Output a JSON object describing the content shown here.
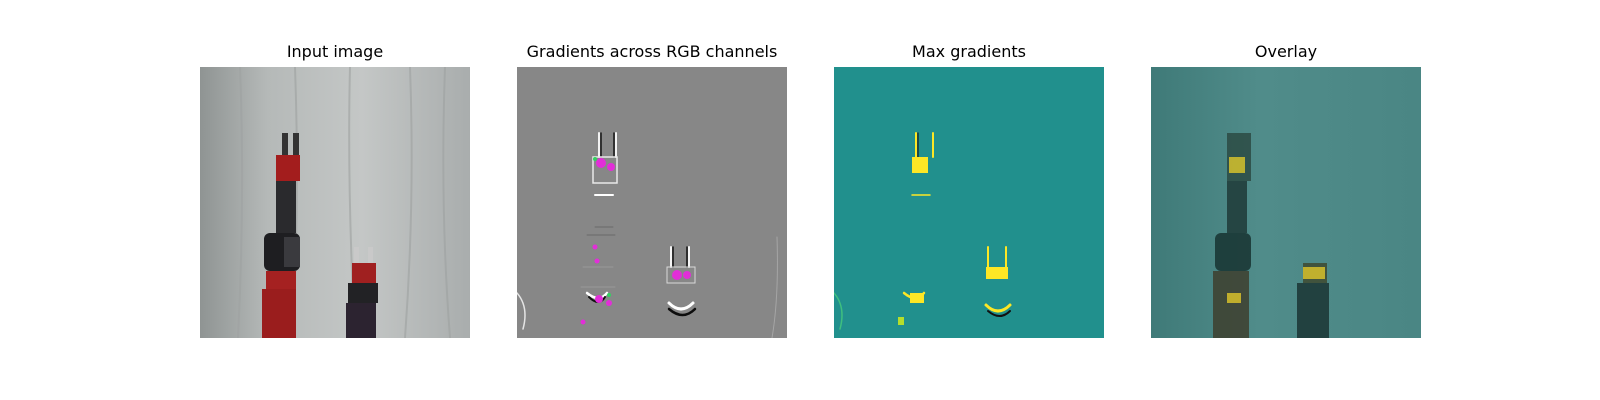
{
  "figure": {
    "panels": [
      {
        "id": "input",
        "title": "Input image"
      },
      {
        "id": "gradients",
        "title": "Gradients across RGB channels"
      },
      {
        "id": "max",
        "title": "Max gradients"
      },
      {
        "id": "overlay",
        "title": "Overlay"
      }
    ]
  },
  "colors": {
    "background": "#ffffff",
    "curtain": "#b9bcbc",
    "robot_red": "#9b2020",
    "robot_dark": "#232326",
    "gradient_gray": "#878787",
    "gradient_highlight": "#e22ed8",
    "max_background": "#21908d",
    "max_highlight": "#fde725",
    "overlay_background": "#4f8a88"
  }
}
